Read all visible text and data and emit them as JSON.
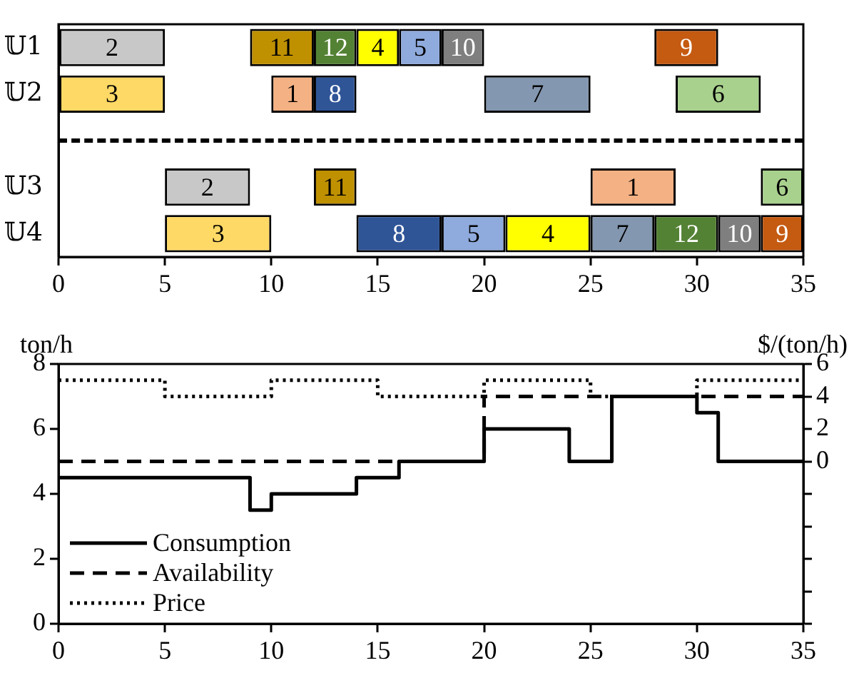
{
  "chart_data": [
    {
      "type": "bar",
      "orientation": "horizontal",
      "categories": [
        "𝕌1",
        "𝕌2",
        null,
        "𝕌3",
        "𝕌4"
      ],
      "xlim": [
        0,
        35
      ],
      "xticks": [
        0,
        5,
        10,
        15,
        20,
        25,
        30,
        35
      ],
      "series": [
        {
          "name": "1",
          "color": "#f4b183",
          "base": [
            null,
            10,
            null,
            25,
            null
          ],
          "values": [
            null,
            2,
            null,
            4,
            null
          ]
        },
        {
          "name": "2",
          "color": "#c8c8c8",
          "base": [
            0,
            null,
            null,
            5,
            null
          ],
          "values": [
            5,
            null,
            null,
            4,
            null
          ]
        },
        {
          "name": "3",
          "color": "#ffd966",
          "base": [
            null,
            0,
            null,
            null,
            5
          ],
          "values": [
            null,
            5,
            null,
            null,
            5
          ]
        },
        {
          "name": "4",
          "color": "#ffff00",
          "base": [
            14,
            null,
            null,
            null,
            21
          ],
          "values": [
            2,
            null,
            null,
            null,
            4
          ]
        },
        {
          "name": "5",
          "color": "#8faadc",
          "base": [
            16,
            null,
            null,
            null,
            18
          ],
          "values": [
            2,
            null,
            null,
            null,
            3
          ]
        },
        {
          "name": "6",
          "color": "#a9d18e",
          "base": [
            null,
            29,
            null,
            33,
            null
          ],
          "values": [
            null,
            4,
            null,
            2,
            null
          ]
        },
        {
          "name": "7",
          "color": "#8497b0",
          "base": [
            null,
            20,
            null,
            null,
            25
          ],
          "values": [
            null,
            5,
            null,
            null,
            3
          ]
        },
        {
          "name": "8",
          "color": "#2f5597",
          "base": [
            null,
            12,
            null,
            null,
            14
          ],
          "values": [
            null,
            2,
            null,
            null,
            4
          ]
        },
        {
          "name": "9",
          "color": "#c55a11",
          "base": [
            28,
            null,
            null,
            null,
            33
          ],
          "values": [
            3,
            null,
            null,
            null,
            2
          ]
        },
        {
          "name": "10",
          "color": "#7f7f7f",
          "base": [
            18,
            null,
            null,
            null,
            31
          ],
          "values": [
            2,
            null,
            null,
            null,
            2
          ]
        },
        {
          "name": "11",
          "color": "#bf9000",
          "base": [
            9,
            null,
            null,
            12,
            null
          ],
          "values": [
            3,
            null,
            null,
            2,
            null
          ]
        },
        {
          "name": "12",
          "color": "#548235",
          "base": [
            12,
            null,
            null,
            null,
            28
          ],
          "values": [
            2,
            null,
            null,
            null,
            3
          ]
        }
      ]
    },
    {
      "type": "step",
      "ylabel": "ton/h",
      "y2label": "$/(ton/h)",
      "xlim": [
        0,
        35
      ],
      "xticks": [
        0,
        5,
        10,
        15,
        20,
        25,
        30,
        35
      ],
      "ylim": [
        0,
        8
      ],
      "yticks": [
        0,
        2,
        4,
        6,
        8
      ],
      "y2lim": [
        -10,
        6
      ],
      "y2ticks": [
        {
          "value": -10,
          "label": null
        },
        {
          "value": -8,
          "label": null
        },
        {
          "value": -6,
          "label": null
        },
        {
          "value": -4,
          "label": null
        },
        {
          "value": -2,
          "label": null
        },
        0,
        2,
        4,
        6
      ],
      "legend": "bottom left",
      "series": [
        {
          "name": "Consumption",
          "color": "#000000",
          "line_style": "solid",
          "x": [
            0,
            9,
            10,
            14,
            16,
            20,
            24,
            26,
            30,
            31,
            35
          ],
          "values": [
            4.5,
            3.5,
            4,
            4.5,
            5,
            6,
            5,
            7,
            6.5,
            5,
            5
          ]
        },
        {
          "name": "Availability",
          "color": "#000000",
          "line_style": "dashed",
          "x": [
            0,
            20,
            35
          ],
          "values": [
            5,
            7,
            7
          ]
        },
        {
          "name": "Price",
          "color": "#000000",
          "line_style": "dotted",
          "axis": "y2",
          "x": [
            0,
            5,
            10,
            15,
            20,
            25,
            30,
            35
          ],
          "values": [
            5,
            4,
            5,
            4,
            5,
            4,
            5,
            5
          ]
        }
      ]
    }
  ]
}
